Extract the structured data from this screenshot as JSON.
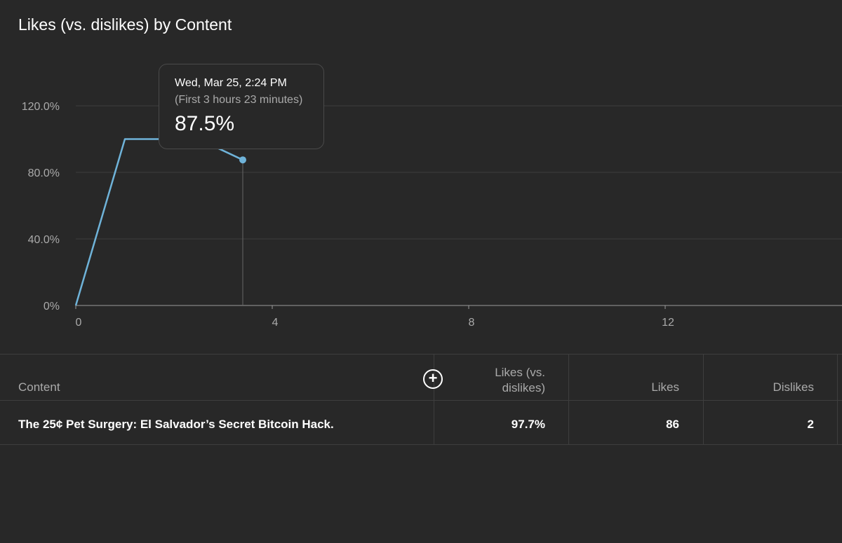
{
  "title": "Likes (vs. dislikes) by Content",
  "tooltip": {
    "date": "Wed, Mar 25, 2:24 PM",
    "subtitle": "(First 3 hours 23 minutes)",
    "value": "87.5%"
  },
  "colors": {
    "background": "#282828",
    "line": "#6fb3d9",
    "grid": "#3e3e3e",
    "muted_text": "#aaaaaa"
  },
  "chart_data": {
    "type": "line",
    "x": [
      0,
      1,
      2.5,
      3.4
    ],
    "series": [
      {
        "values": [
          0,
          100,
          100,
          87.5
        ]
      }
    ],
    "ylim": [
      0,
      120
    ],
    "yticks": [
      0,
      40,
      80,
      120
    ],
    "ytick_labels": [
      "0%",
      "40.0%",
      "80.0%",
      "120.0%"
    ],
    "xlim": [
      0,
      15.6
    ],
    "xticks": [
      0,
      4,
      8,
      12
    ],
    "xtick_labels": [
      "0",
      "4",
      "8",
      "12"
    ],
    "highlight": {
      "x": 3.4,
      "y": 87.5
    },
    "grid": true
  },
  "table": {
    "headers": {
      "content": "Content",
      "likes_pct_line1": "Likes (vs.",
      "likes_pct_line2": "dislikes)",
      "likes": "Likes",
      "dislikes": "Dislikes"
    },
    "add_column_icon": "plus-circle-icon",
    "rows": [
      {
        "content": "The 25¢ Pet Surgery: El Salvador’s Secret Bitcoin Hack.",
        "likes_pct": "97.7%",
        "likes": "86",
        "dislikes": "2"
      }
    ]
  }
}
